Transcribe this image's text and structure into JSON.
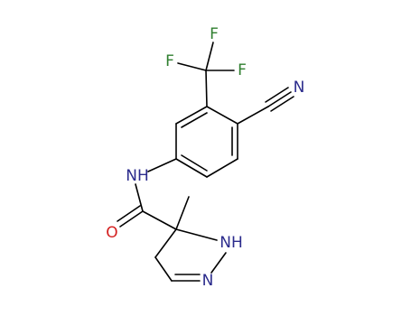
{
  "atoms": [
    {
      "label": "F"
    },
    {
      "label": "F"
    },
    {
      "label": "F"
    },
    {
      "label": "N"
    },
    {
      "label": "NH"
    },
    {
      "label": "O"
    },
    {
      "label": "NH"
    },
    {
      "label": "N"
    }
  ]
}
